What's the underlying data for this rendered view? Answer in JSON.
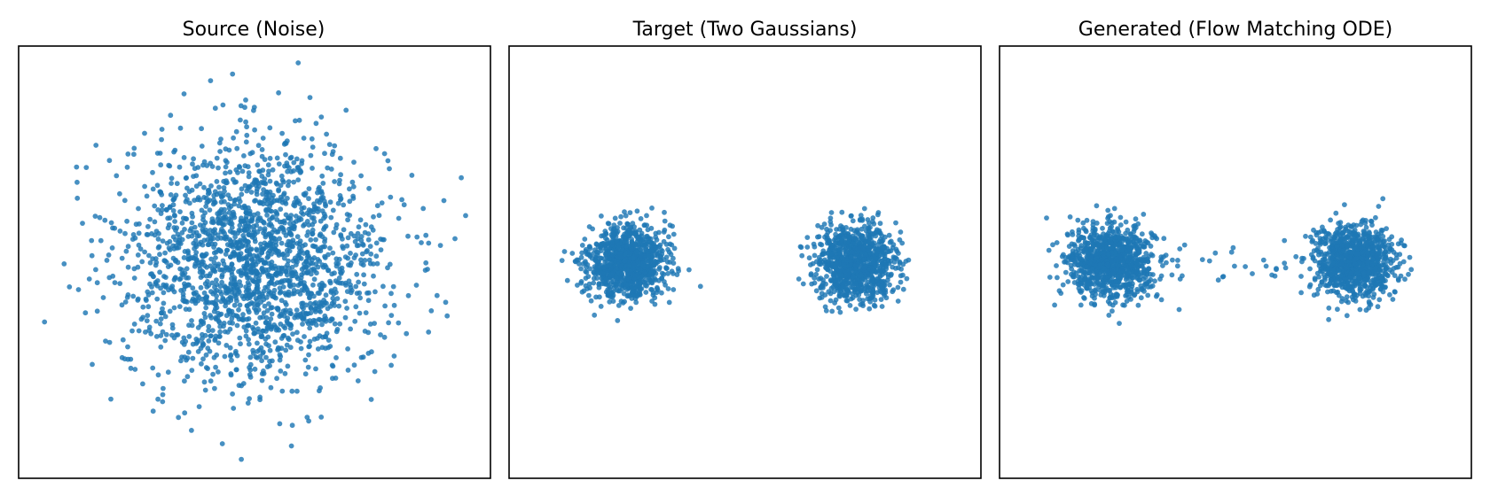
{
  "figure": {
    "background": "#ffffff",
    "point_color": "#1f77b4"
  },
  "chart_data": [
    {
      "type": "scatter",
      "title": "Source (Noise)",
      "xlabel": "",
      "ylabel": "",
      "xlim": [
        -3.6,
        3.6
      ],
      "ylim": [
        -3.6,
        3.6
      ],
      "axis_ticks": false,
      "grid": false,
      "legend": "none",
      "series": [
        {
          "distribution": "gaussian",
          "count": 2000,
          "clusters": [
            {
              "center": [
                0.0,
                0.0
              ],
              "std": [
                1.0,
                1.0
              ],
              "weight": 1.0
            }
          ]
        }
      ]
    },
    {
      "type": "scatter",
      "title": "Target (Two Gaussians)",
      "xlabel": "",
      "ylabel": "",
      "xlim": [
        -3.6,
        3.6
      ],
      "ylim": [
        -3.6,
        3.6
      ],
      "axis_ticks": false,
      "grid": false,
      "legend": "none",
      "series": [
        {
          "distribution": "gaussian_mixture",
          "count": 2000,
          "clusters": [
            {
              "center": [
                -1.8,
                0.0
              ],
              "std": [
                0.3,
                0.3
              ],
              "weight": 0.5
            },
            {
              "center": [
                1.7,
                0.0
              ],
              "std": [
                0.3,
                0.3
              ],
              "weight": 0.5
            }
          ]
        }
      ]
    },
    {
      "type": "scatter",
      "title": "Generated (Flow Matching ODE)",
      "xlabel": "",
      "ylabel": "",
      "xlim": [
        -3.6,
        3.6
      ],
      "ylim": [
        -3.6,
        3.6
      ],
      "axis_ticks": false,
      "grid": false,
      "legend": "none",
      "series": [
        {
          "distribution": "gaussian_mixture",
          "count": 2000,
          "clusters": [
            {
              "center": [
                -1.9,
                0.0
              ],
              "std": [
                0.33,
                0.3
              ],
              "weight": 0.49
            },
            {
              "center": [
                1.8,
                0.0
              ],
              "std": [
                0.3,
                0.3
              ],
              "weight": 0.49
            }
          ],
          "bridge": {
            "x_range": [
              -0.9,
              0.8
            ],
            "y_std": 0.22,
            "count": 25
          }
        }
      ]
    }
  ]
}
